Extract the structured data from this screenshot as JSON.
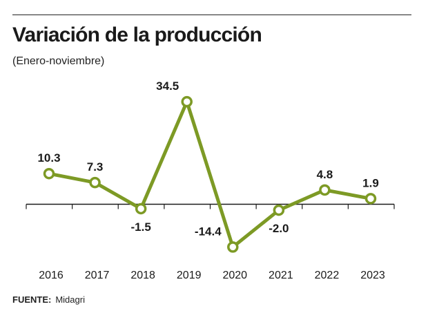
{
  "header": {
    "title": "Variación de la producción",
    "subtitle": "(Enero-noviembre)"
  },
  "footer": {
    "source_label": "FUENTE:",
    "source_value": "Midagri"
  },
  "colors": {
    "series": "#7d9a25",
    "axis": "#1a1a1a",
    "text": "#1a1a1a"
  },
  "chart_data": {
    "type": "line",
    "title": "Variación de la producción",
    "subtitle": "(Enero-noviembre)",
    "categories": [
      "2016",
      "2017",
      "2018",
      "2019",
      "2020",
      "2021",
      "2022",
      "2023"
    ],
    "series": [
      {
        "name": "Variación",
        "values": [
          10.3,
          7.3,
          -1.5,
          34.5,
          -14.4,
          -2.0,
          4.8,
          1.9
        ]
      }
    ],
    "data_labels": [
      "10.3",
      "7.3",
      "-1.5",
      "34.5",
      "-14.4",
      "-2.0",
      "4.8",
      "1.9"
    ],
    "xlabel": "",
    "ylabel": "",
    "ylim": [
      -14.4,
      34.5
    ],
    "grid": false,
    "legend": "none"
  }
}
